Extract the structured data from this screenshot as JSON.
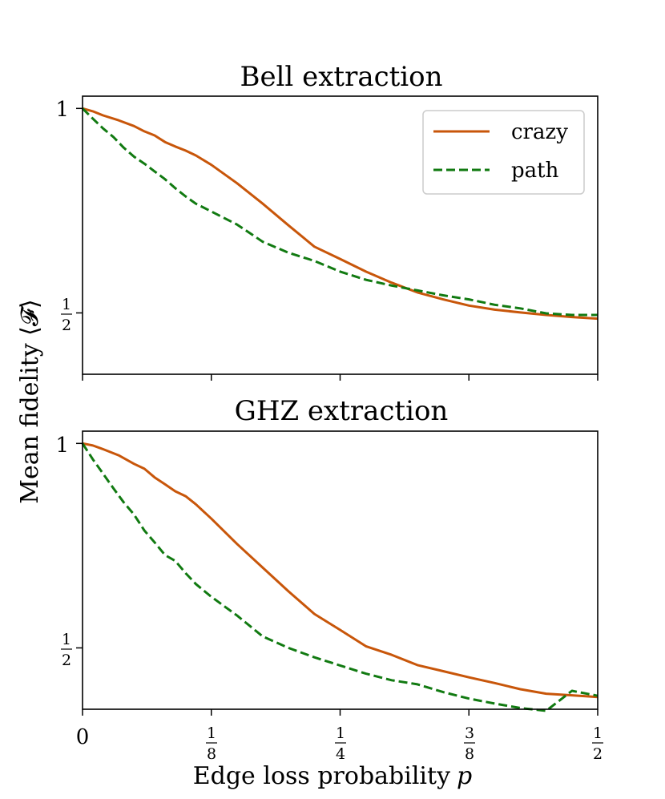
{
  "figure": {
    "ylabel": "Mean fidelity ⟨𝓕⟩",
    "xlabel_prefix": "Edge loss probability",
    "xlabel_var": "p",
    "x_zero_tick": "0",
    "x_fraction_ticks": [
      {
        "num": "1",
        "den": "8"
      },
      {
        "num": "1",
        "den": "4"
      },
      {
        "num": "3",
        "den": "8"
      },
      {
        "num": "1",
        "den": "2"
      }
    ],
    "y_one_tick": "1",
    "y_half_tick": {
      "num": "1",
      "den": "2"
    }
  },
  "legend": {
    "crazy_label": "crazy",
    "path_label": "path"
  },
  "colors": {
    "crazy": "#c8560a",
    "path": "#117a11"
  },
  "chart_data": [
    {
      "type": "line",
      "title": "Bell extraction",
      "xlabel": "",
      "ylabel": "Mean fidelity ⟨𝓕⟩",
      "xlim": [
        0,
        0.5
      ],
      "ylim": [
        0.35,
        1.03
      ],
      "xticks": [
        0,
        0.125,
        0.25,
        0.375,
        0.5
      ],
      "xtick_labels": [
        "",
        "",
        "",
        "",
        ""
      ],
      "yticks": [
        0.5,
        1
      ],
      "legend": [
        "crazy",
        "path"
      ],
      "series": [
        {
          "name": "crazy",
          "style": "solid",
          "x": [
            0,
            0.01,
            0.02,
            0.035,
            0.05,
            0.06,
            0.07,
            0.08,
            0.09,
            0.1,
            0.11,
            0.125,
            0.15,
            0.175,
            0.2,
            0.225,
            0.25,
            0.275,
            0.3,
            0.325,
            0.35,
            0.375,
            0.4,
            0.425,
            0.45,
            0.475,
            0.5
          ],
          "y": [
            1.0,
            0.993,
            0.983,
            0.971,
            0.957,
            0.944,
            0.934,
            0.918,
            0.907,
            0.897,
            0.885,
            0.862,
            0.817,
            0.767,
            0.714,
            0.662,
            0.632,
            0.601,
            0.574,
            0.55,
            0.533,
            0.518,
            0.508,
            0.501,
            0.495,
            0.49,
            0.486
          ]
        },
        {
          "name": "path",
          "style": "dashed",
          "x": [
            0,
            0.01,
            0.02,
            0.03,
            0.04,
            0.05,
            0.06,
            0.07,
            0.08,
            0.09,
            0.1,
            0.11,
            0.125,
            0.15,
            0.175,
            0.2,
            0.225,
            0.25,
            0.275,
            0.3,
            0.325,
            0.35,
            0.375,
            0.4,
            0.425,
            0.45,
            0.475,
            0.5
          ],
          "y": [
            1.0,
            0.975,
            0.951,
            0.93,
            0.904,
            0.882,
            0.865,
            0.846,
            0.827,
            0.805,
            0.785,
            0.767,
            0.748,
            0.716,
            0.674,
            0.647,
            0.627,
            0.601,
            0.581,
            0.567,
            0.555,
            0.543,
            0.533,
            0.52,
            0.511,
            0.499,
            0.495,
            0.495
          ]
        }
      ]
    },
    {
      "type": "line",
      "title": "GHZ extraction",
      "xlabel": "Edge loss probability p",
      "ylabel": "Mean fidelity ⟨𝓕⟩",
      "xlim": [
        0,
        0.5
      ],
      "ylim": [
        0.35,
        1.03
      ],
      "xticks": [
        0,
        0.125,
        0.25,
        0.375,
        0.5
      ],
      "xtick_labels": [
        "0",
        "1/8",
        "1/4",
        "3/8",
        "1/2"
      ],
      "yticks": [
        0.5,
        1
      ],
      "series": [
        {
          "name": "crazy",
          "style": "solid",
          "x": [
            0,
            0.01,
            0.02,
            0.035,
            0.05,
            0.06,
            0.07,
            0.08,
            0.09,
            0.1,
            0.11,
            0.125,
            0.15,
            0.175,
            0.2,
            0.225,
            0.25,
            0.275,
            0.3,
            0.325,
            0.35,
            0.375,
            0.4,
            0.425,
            0.45,
            0.475,
            0.5
          ],
          "y": [
            1.0,
            0.995,
            0.986,
            0.971,
            0.95,
            0.938,
            0.917,
            0.9,
            0.883,
            0.871,
            0.851,
            0.816,
            0.754,
            0.696,
            0.638,
            0.583,
            0.544,
            0.504,
            0.483,
            0.458,
            0.443,
            0.428,
            0.414,
            0.399,
            0.388,
            0.384,
            0.38
          ]
        },
        {
          "name": "path",
          "style": "dashed",
          "x": [
            0,
            0.01,
            0.02,
            0.03,
            0.04,
            0.05,
            0.06,
            0.07,
            0.08,
            0.09,
            0.1,
            0.11,
            0.125,
            0.15,
            0.175,
            0.2,
            0.225,
            0.25,
            0.275,
            0.3,
            0.325,
            0.35,
            0.375,
            0.4,
            0.425,
            0.45,
            0.475,
            0.5
          ],
          "y": [
            1.0,
            0.961,
            0.926,
            0.89,
            0.856,
            0.826,
            0.787,
            0.758,
            0.727,
            0.713,
            0.683,
            0.656,
            0.625,
            0.579,
            0.528,
            0.5,
            0.477,
            0.457,
            0.437,
            0.421,
            0.411,
            0.392,
            0.376,
            0.364,
            0.353,
            0.346,
            0.395,
            0.383
          ]
        }
      ]
    }
  ]
}
